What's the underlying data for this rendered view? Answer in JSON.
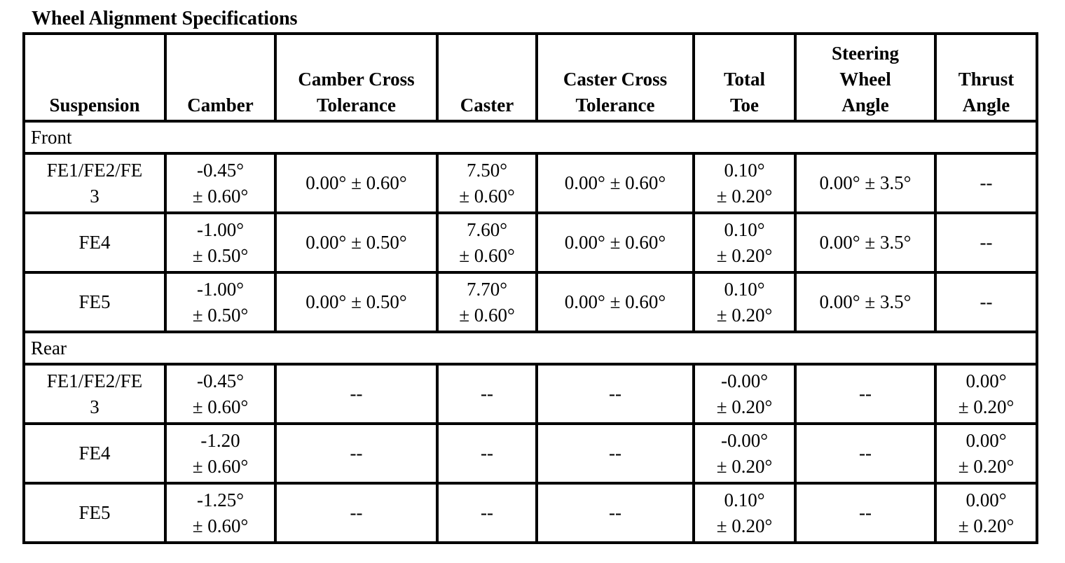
{
  "title": "Wheel Alignment Specifications",
  "columns": [
    "Suspension",
    "Camber",
    "Camber Cross\nTolerance",
    "Caster",
    "Caster Cross\nTolerance",
    "Total\nToe",
    "Steering\nWheel\nAngle",
    "Thrust\nAngle"
  ],
  "sections": [
    {
      "label": "Front",
      "rows": [
        [
          "FE1/FE2/FE\n3",
          "-0.45°\n± 0.60°",
          "0.00° ± 0.60°",
          "7.50°\n± 0.60°",
          "0.00° ± 0.60°",
          "0.10°\n± 0.20°",
          "0.00° ± 3.5°",
          "--"
        ],
        [
          "FE4",
          "-1.00°\n± 0.50°",
          "0.00° ± 0.50°",
          "7.60°\n± 0.60°",
          "0.00° ± 0.60°",
          "0.10°\n± 0.20°",
          "0.00° ± 3.5°",
          "--"
        ],
        [
          "FE5",
          "-1.00°\n± 0.50°",
          "0.00° ± 0.50°",
          "7.70°\n± 0.60°",
          "0.00° ± 0.60°",
          "0.10°\n± 0.20°",
          "0.00° ± 3.5°",
          "--"
        ]
      ]
    },
    {
      "label": "Rear",
      "rows": [
        [
          "FE1/FE2/FE\n3",
          "-0.45°\n± 0.60°",
          "--",
          "--",
          "--",
          "-0.00°\n± 0.20°",
          "--",
          "0.00°\n± 0.20°"
        ],
        [
          "FE4",
          "-1.20\n± 0.60°",
          "--",
          "--",
          "--",
          "-0.00°\n± 0.20°",
          "--",
          "0.00°\n± 0.20°"
        ],
        [
          "FE5",
          "-1.25°\n± 0.60°",
          "--",
          "--",
          "--",
          "0.10°\n± 0.20°",
          "--",
          "0.00°\n± 0.20°"
        ]
      ]
    }
  ]
}
